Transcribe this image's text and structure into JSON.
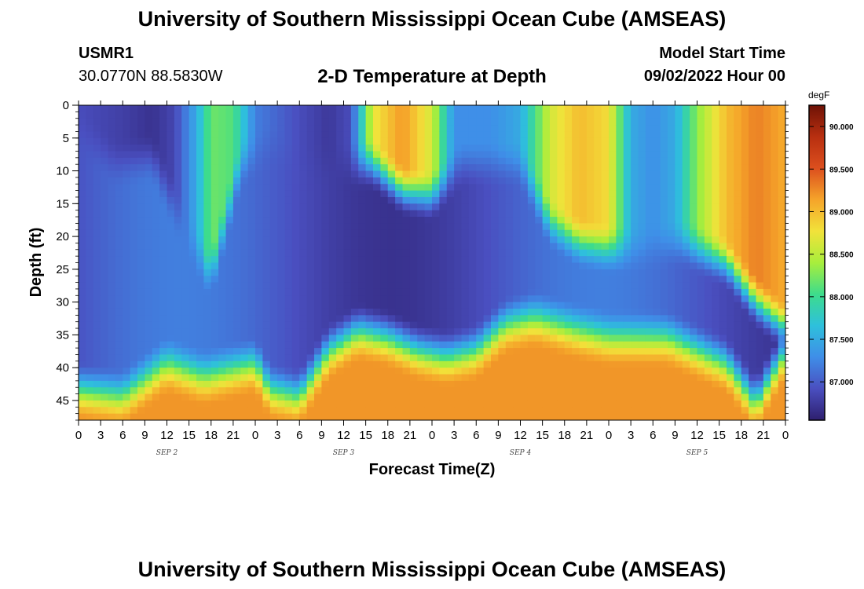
{
  "page": {
    "title": "University of Southern Mississippi Ocean Cube (AMSEAS)",
    "footer_title": "University of Southern Mississippi Ocean Cube (AMSEAS)",
    "station_id": "USMR1",
    "coordinates": "30.0770N  88.5830W",
    "subtitle": "2-D Temperature at Depth",
    "model_start_label": "Model Start Time",
    "model_start_value": "09/02/2022 Hour 00"
  },
  "chart_data": {
    "type": "heatmap",
    "title": "2-D Temperature at Depth",
    "xlabel": "Forecast Time(Z)",
    "ylabel": "Depth (ft)",
    "x_range_hours": [
      0,
      96
    ],
    "y_range_ft": [
      0,
      48
    ],
    "x_tick_labels": [
      "0",
      "3",
      "6",
      "9",
      "12",
      "15",
      "18",
      "21",
      "0",
      "3",
      "6",
      "9",
      "12",
      "15",
      "18",
      "21",
      "0",
      "3",
      "6",
      "9",
      "12",
      "15",
      "18",
      "21",
      "0",
      "3",
      "6",
      "9",
      "12",
      "15",
      "18",
      "21",
      "0"
    ],
    "day_labels": [
      {
        "label": "SEP 2",
        "hour": 12
      },
      {
        "label": "SEP 3",
        "hour": 36
      },
      {
        "label": "SEP 4",
        "hour": 60
      },
      {
        "label": "SEP 5",
        "hour": 84
      }
    ],
    "y_ticks": [
      0,
      5,
      10,
      15,
      20,
      25,
      30,
      35,
      40,
      45
    ],
    "colorbar": {
      "unit": "degF",
      "min": 86.55,
      "max": 90.25,
      "ticks": [
        87.0,
        87.5,
        88.0,
        88.5,
        89.0,
        89.5,
        90.0
      ],
      "tick_labels": [
        "87.000",
        "87.500",
        "88.000",
        "88.500",
        "89.000",
        "89.500",
        "90.000"
      ],
      "stops": [
        "#2e1f6e",
        "#4a4fc0",
        "#3f8ee8",
        "#2ec0dc",
        "#3ddc8c",
        "#a8ee3c",
        "#f2e23a",
        "#f5a42a",
        "#dc4f1e",
        "#b82f10",
        "#6e1206"
      ]
    },
    "surface_profile_degF": [
      [
        0,
        86.9
      ],
      [
        6,
        86.8
      ],
      [
        10,
        86.7
      ],
      [
        13,
        86.85
      ],
      [
        16,
        87.5
      ],
      [
        18,
        88.2
      ],
      [
        21,
        88.1
      ],
      [
        24,
        87.2
      ],
      [
        30,
        86.9
      ],
      [
        34,
        86.75
      ],
      [
        37,
        86.9
      ],
      [
        40,
        88.7
      ],
      [
        44,
        89.2
      ],
      [
        48,
        88.6
      ],
      [
        51,
        87.3
      ],
      [
        56,
        87.3
      ],
      [
        60,
        87.5
      ],
      [
        64,
        88.6
      ],
      [
        68,
        89.0
      ],
      [
        72,
        88.8
      ],
      [
        75,
        87.5
      ],
      [
        78,
        87.3
      ],
      [
        81,
        87.5
      ],
      [
        84,
        88.3
      ],
      [
        88,
        89.0
      ],
      [
        92,
        89.3
      ],
      [
        96,
        89.1
      ]
    ],
    "surface_layer_depth_ft": [
      [
        0,
        0
      ],
      [
        5,
        5
      ],
      [
        10,
        4
      ],
      [
        14,
        14
      ],
      [
        18,
        22
      ],
      [
        22,
        5
      ],
      [
        26,
        2
      ],
      [
        30,
        5
      ],
      [
        36,
        5
      ],
      [
        40,
        5
      ],
      [
        44,
        9
      ],
      [
        48,
        10
      ],
      [
        52,
        5
      ],
      [
        60,
        5
      ],
      [
        64,
        14
      ],
      [
        68,
        17
      ],
      [
        72,
        18
      ],
      [
        76,
        18
      ],
      [
        82,
        17
      ],
      [
        88,
        20
      ],
      [
        92,
        26
      ],
      [
        96,
        30
      ]
    ],
    "bottom_layer_top_ft": [
      [
        0,
        44
      ],
      [
        6,
        45
      ],
      [
        12,
        40
      ],
      [
        17,
        42
      ],
      [
        24,
        40
      ],
      [
        26,
        44
      ],
      [
        30,
        45
      ],
      [
        34,
        38
      ],
      [
        38,
        35
      ],
      [
        42,
        36
      ],
      [
        46,
        38
      ],
      [
        50,
        39
      ],
      [
        54,
        38
      ],
      [
        58,
        34
      ],
      [
        62,
        33
      ],
      [
        68,
        35
      ],
      [
        72,
        36
      ],
      [
        80,
        36
      ],
      [
        84,
        38
      ],
      [
        88,
        40
      ],
      [
        92,
        46
      ],
      [
        96,
        38
      ]
    ],
    "bottom_temperature_degF": 89.2
  }
}
